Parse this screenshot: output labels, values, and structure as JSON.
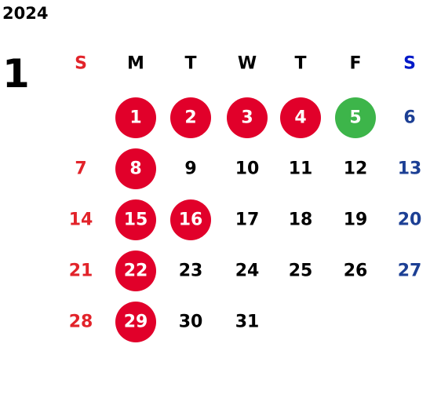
{
  "year": "2024",
  "month": "1",
  "weekdays": [
    "S",
    "M",
    "T",
    "W",
    "T",
    "F",
    "S"
  ],
  "weeks": [
    [
      null,
      {
        "day": "1",
        "circle": "#e1002a"
      },
      {
        "day": "2",
        "circle": "#e1002a"
      },
      {
        "day": "3",
        "circle": "#e1002a"
      },
      {
        "day": "4",
        "circle": "#e1002a"
      },
      {
        "day": "5",
        "circle": "#3db54a"
      },
      {
        "day": "6"
      }
    ],
    [
      {
        "day": "7"
      },
      {
        "day": "8",
        "circle": "#e1002a"
      },
      {
        "day": "9"
      },
      {
        "day": "10"
      },
      {
        "day": "11"
      },
      {
        "day": "12"
      },
      {
        "day": "13"
      }
    ],
    [
      {
        "day": "14"
      },
      {
        "day": "15",
        "circle": "#e1002a"
      },
      {
        "day": "16",
        "circle": "#e1002a"
      },
      {
        "day": "17"
      },
      {
        "day": "18"
      },
      {
        "day": "19"
      },
      {
        "day": "20"
      }
    ],
    [
      {
        "day": "21"
      },
      {
        "day": "22",
        "circle": "#e1002a"
      },
      {
        "day": "23"
      },
      {
        "day": "24"
      },
      {
        "day": "25"
      },
      {
        "day": "26"
      },
      {
        "day": "27"
      }
    ],
    [
      {
        "day": "28"
      },
      {
        "day": "29",
        "circle": "#e1002a"
      },
      {
        "day": "30"
      },
      {
        "day": "31"
      },
      null,
      null,
      null
    ]
  ]
}
